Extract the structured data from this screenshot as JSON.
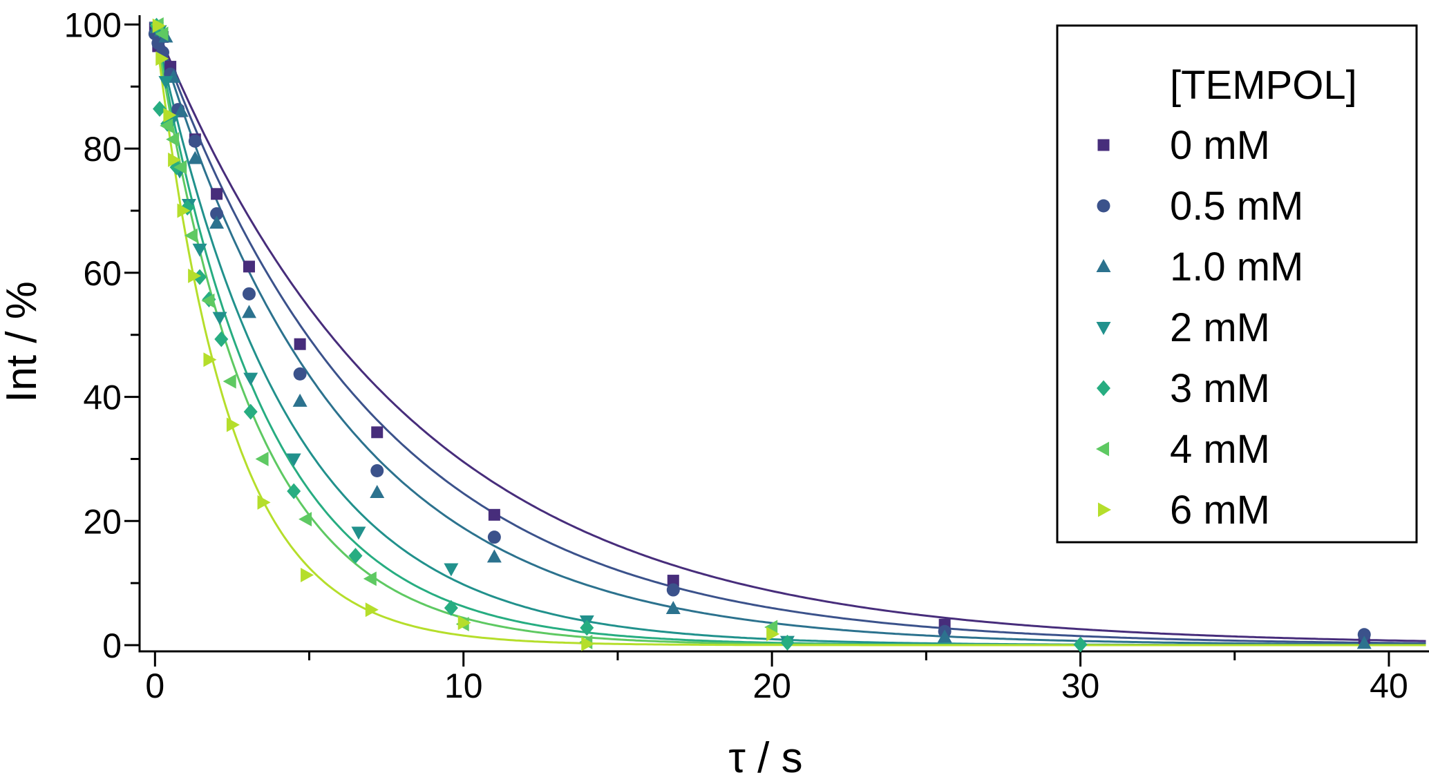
{
  "chart_data": {
    "type": "scatter",
    "xlabel": "τ / s",
    "ylabel": "Int / %",
    "xlim": [
      -0.5,
      41.3
    ],
    "ylim": [
      -1,
      101.5
    ],
    "x_ticks": [
      0,
      10,
      20,
      30,
      40
    ],
    "y_ticks": [
      0,
      20,
      40,
      60,
      80,
      100
    ],
    "grid": false,
    "legend": {
      "title": "[TEMPOL]",
      "placement": "top-right"
    },
    "fit_model": "exponential decay",
    "series": [
      {
        "name": "0 mM",
        "color": "#472d7b",
        "marker": "square",
        "fit_tau": 8.2,
        "points": [
          [
            0.0,
            99.5
          ],
          [
            0.1,
            96.5
          ],
          [
            0.25,
            98.0
          ],
          [
            0.5,
            93.2
          ],
          [
            0.75,
            86.0
          ],
          [
            1.3,
            81.5
          ],
          [
            2.0,
            72.7
          ],
          [
            3.05,
            61.0
          ],
          [
            4.7,
            48.5
          ],
          [
            7.2,
            34.3
          ],
          [
            11.0,
            21.0
          ],
          [
            16.8,
            10.4
          ],
          [
            25.6,
            3.3
          ],
          [
            39.2,
            1.1
          ]
        ]
      },
      {
        "name": "0.5 mM",
        "color": "#3b528b",
        "marker": "circle",
        "fit_tau": 7.1,
        "points": [
          [
            0.0,
            98.5
          ],
          [
            0.1,
            97.0
          ],
          [
            0.25,
            95.5
          ],
          [
            0.5,
            92.0
          ],
          [
            0.75,
            86.3
          ],
          [
            1.3,
            81.2
          ],
          [
            2.0,
            69.5
          ],
          [
            3.05,
            56.6
          ],
          [
            4.7,
            43.7
          ],
          [
            7.2,
            28.1
          ],
          [
            11.0,
            17.4
          ],
          [
            16.8,
            8.9
          ],
          [
            25.6,
            2.2
          ],
          [
            39.2,
            1.7
          ]
        ]
      },
      {
        "name": "1.0 mM",
        "color": "#2c728e",
        "marker": "triangle-up",
        "fit_tau": 6.0,
        "points": [
          [
            0.05,
            99.5
          ],
          [
            0.2,
            99.0
          ],
          [
            0.35,
            98.0
          ],
          [
            0.6,
            91.5
          ],
          [
            0.85,
            86.0
          ],
          [
            1.3,
            78.4
          ],
          [
            2.0,
            68.0
          ],
          [
            3.05,
            53.6
          ],
          [
            4.7,
            39.3
          ],
          [
            7.2,
            24.6
          ],
          [
            11.0,
            14.2
          ],
          [
            16.8,
            5.9
          ],
          [
            25.6,
            1.3
          ],
          [
            39.2,
            0.3
          ]
        ]
      },
      {
        "name": "2 mM",
        "color": "#21918c",
        "marker": "triangle-down",
        "fit_tau": 4.3,
        "points": [
          [
            0.05,
            99.5
          ],
          [
            0.15,
            99.0
          ],
          [
            0.35,
            90.8
          ],
          [
            0.55,
            84.5
          ],
          [
            0.8,
            76.4
          ],
          [
            1.1,
            71.0
          ],
          [
            1.45,
            63.8
          ],
          [
            2.1,
            52.8
          ],
          [
            3.1,
            43.0
          ],
          [
            4.5,
            30.0
          ],
          [
            6.6,
            18.2
          ],
          [
            9.6,
            12.3
          ],
          [
            14.0,
            3.9
          ],
          [
            20.5,
            0.6
          ]
        ]
      },
      {
        "name": "3 mM",
        "color": "#27ad81",
        "marker": "diamond",
        "fit_tau": 3.6,
        "points": [
          [
            0.05,
            99.8
          ],
          [
            0.15,
            86.4
          ],
          [
            0.4,
            84.0
          ],
          [
            0.7,
            77.0
          ],
          [
            1.05,
            70.5
          ],
          [
            1.45,
            59.3
          ],
          [
            1.75,
            55.7
          ],
          [
            2.15,
            49.3
          ],
          [
            3.1,
            37.6
          ],
          [
            4.5,
            24.8
          ],
          [
            6.5,
            14.4
          ],
          [
            9.6,
            6.0
          ],
          [
            14.0,
            2.8
          ],
          [
            20.5,
            0.4
          ],
          [
            30.0,
            0.1
          ]
        ]
      },
      {
        "name": "4 mM",
        "color": "#5ec962",
        "marker": "triangle-left",
        "fit_tau": 3.2,
        "points": [
          [
            0.1,
            100.0
          ],
          [
            0.25,
            98.5
          ],
          [
            0.4,
            83.7
          ],
          [
            0.6,
            81.5
          ],
          [
            0.85,
            77.0
          ],
          [
            1.2,
            66.0
          ],
          [
            1.75,
            55.5
          ],
          [
            2.45,
            42.5
          ],
          [
            3.5,
            30.0
          ],
          [
            4.9,
            20.3
          ],
          [
            7.0,
            10.7
          ],
          [
            10.0,
            3.4
          ],
          [
            14.0,
            0.5
          ],
          [
            20.0,
            2.9
          ]
        ]
      },
      {
        "name": "6 mM",
        "color": "#b5de2b",
        "marker": "triangle-right",
        "fit_tau": 2.4,
        "points": [
          [
            0.1,
            99.8
          ],
          [
            0.2,
            94.5
          ],
          [
            0.45,
            85.4
          ],
          [
            0.6,
            78.2
          ],
          [
            0.9,
            70.0
          ],
          [
            1.25,
            59.5
          ],
          [
            1.75,
            46.0
          ],
          [
            2.5,
            35.5
          ],
          [
            3.5,
            23.0
          ],
          [
            4.9,
            11.3
          ],
          [
            7.0,
            5.7
          ],
          [
            10.0,
            3.6
          ],
          [
            14.0,
            0.2
          ],
          [
            20.0,
            1.8
          ]
        ]
      }
    ]
  }
}
